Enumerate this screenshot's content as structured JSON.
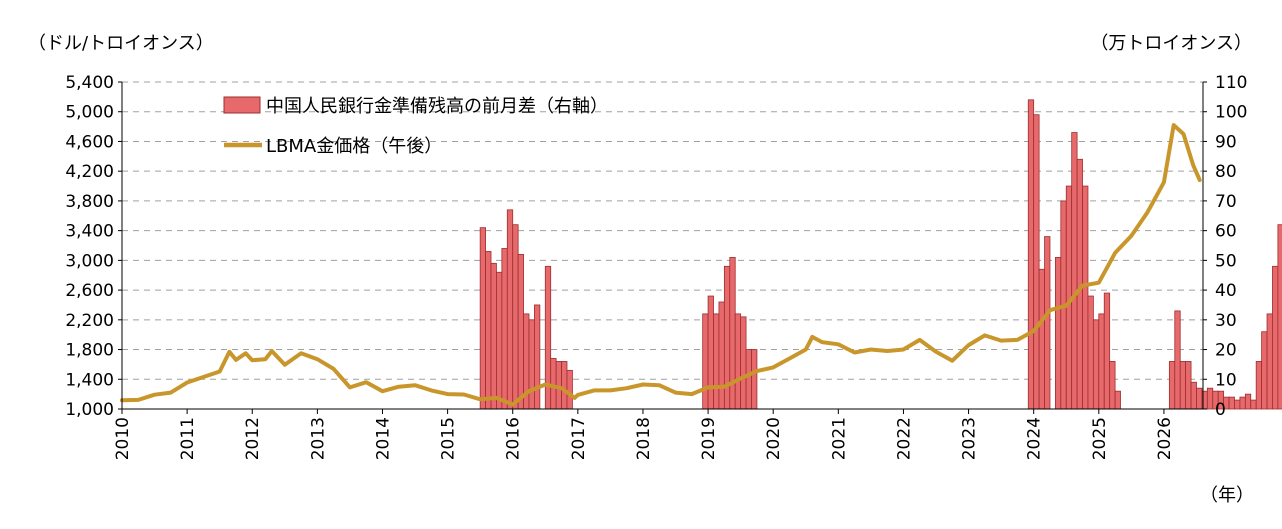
{
  "chart_data": {
    "type": "bar+line",
    "left_axis_label": "（ドル/トロイオンス）",
    "right_axis_label": "（万トロイオンス）",
    "x_axis_unit_label": "（年）",
    "left_ylim": [
      1000,
      5400
    ],
    "left_ticks": [
      "1,000",
      "1,400",
      "1,800",
      "2,200",
      "2,600",
      "3,000",
      "3,400",
      "3,800",
      "4,200",
      "4,600",
      "5,000",
      "5,400"
    ],
    "right_ylim": [
      0,
      110
    ],
    "right_ticks": [
      "0",
      "10",
      "20",
      "30",
      "40",
      "50",
      "60",
      "70",
      "80",
      "90",
      "100",
      "110"
    ],
    "x_ticks": [
      "2010",
      "2011",
      "2012",
      "2013",
      "2014",
      "2015",
      "2016",
      "2017",
      "2018",
      "2019",
      "2020",
      "2021",
      "2022",
      "2023",
      "2024",
      "2025",
      "2026"
    ],
    "grid": "horizontal dashed",
    "legend_position": "top-left",
    "bar_series": {
      "name": "中国人民銀行金準備残高の前月差（右軸）",
      "color": "#e8696b",
      "start_year": 2010,
      "values": [
        0,
        0,
        0,
        0,
        0,
        0,
        0,
        0,
        0,
        0,
        0,
        0,
        0,
        0,
        0,
        0,
        0,
        0,
        0,
        0,
        0,
        0,
        0,
        0,
        0,
        0,
        0,
        0,
        0,
        0,
        0,
        0,
        0,
        0,
        0,
        0,
        0,
        0,
        0,
        0,
        0,
        0,
        0,
        0,
        0,
        0,
        0,
        0,
        0,
        0,
        0,
        0,
        0,
        0,
        0,
        0,
        0,
        0,
        0,
        0,
        0,
        0,
        0,
        0,
        0,
        0,
        61,
        53,
        49,
        46,
        54,
        67,
        62,
        52,
        32,
        30,
        35,
        0,
        48,
        17,
        16,
        16,
        13,
        0,
        0,
        0,
        0,
        0,
        0,
        0,
        0,
        0,
        0,
        0,
        0,
        0,
        0,
        0,
        0,
        0,
        0,
        0,
        0,
        0,
        0,
        0,
        0,
        32,
        38,
        32,
        36,
        48,
        51,
        32,
        31,
        20,
        20,
        0,
        0,
        0,
        0,
        0,
        0,
        0,
        0,
        0,
        0,
        0,
        0,
        0,
        0,
        0,
        0,
        0,
        0,
        0,
        0,
        0,
        0,
        0,
        0,
        0,
        0,
        0,
        0,
        0,
        0,
        0,
        0,
        0,
        0,
        0,
        0,
        0,
        0,
        0,
        0,
        0,
        0,
        0,
        0,
        0,
        0,
        0,
        0,
        0,
        0,
        104,
        99,
        47,
        58,
        0,
        51,
        70,
        75,
        93,
        84,
        75,
        38,
        30,
        32,
        39,
        16,
        6,
        0,
        0,
        0,
        0,
        0,
        0,
        0,
        0,
        0,
        16,
        33,
        16,
        16,
        9,
        7,
        6,
        7,
        6,
        6,
        4,
        4,
        3,
        4,
        5,
        3,
        16,
        26,
        32,
        48,
        62
      ]
    },
    "line_series": {
      "name": "LBMA金価格（午後）",
      "color": "#c9962c",
      "values": [
        [
          2010.0,
          1118
        ],
        [
          2010.25,
          1122
        ],
        [
          2010.5,
          1193
        ],
        [
          2010.75,
          1221
        ],
        [
          2011.0,
          1356
        ],
        [
          2011.25,
          1430
        ],
        [
          2011.5,
          1505
        ],
        [
          2011.65,
          1770
        ],
        [
          2011.75,
          1660
        ],
        [
          2011.9,
          1749
        ],
        [
          2012.0,
          1656
        ],
        [
          2012.2,
          1670
        ],
        [
          2012.3,
          1780
        ],
        [
          2012.5,
          1595
        ],
        [
          2012.75,
          1750
        ],
        [
          2013.0,
          1670
        ],
        [
          2013.25,
          1540
        ],
        [
          2013.5,
          1290
        ],
        [
          2013.75,
          1360
        ],
        [
          2014.0,
          1240
        ],
        [
          2014.25,
          1300
        ],
        [
          2014.5,
          1320
        ],
        [
          2014.75,
          1250
        ],
        [
          2015.0,
          1200
        ],
        [
          2015.25,
          1195
        ],
        [
          2015.5,
          1130
        ],
        [
          2015.75,
          1150
        ],
        [
          2016.0,
          1060
        ],
        [
          2016.25,
          1240
        ],
        [
          2016.5,
          1330
        ],
        [
          2016.75,
          1280
        ],
        [
          2016.95,
          1150
        ],
        [
          2017.0,
          1190
        ],
        [
          2017.25,
          1250
        ],
        [
          2017.5,
          1250
        ],
        [
          2017.75,
          1280
        ],
        [
          2018.0,
          1330
        ],
        [
          2018.25,
          1320
        ],
        [
          2018.5,
          1220
        ],
        [
          2018.75,
          1200
        ],
        [
          2019.0,
          1290
        ],
        [
          2019.25,
          1300
        ],
        [
          2019.5,
          1410
        ],
        [
          2019.75,
          1510
        ],
        [
          2020.0,
          1560
        ],
        [
          2020.25,
          1680
        ],
        [
          2020.5,
          1800
        ],
        [
          2020.6,
          1970
        ],
        [
          2020.75,
          1900
        ],
        [
          2021.0,
          1870
        ],
        [
          2021.25,
          1760
        ],
        [
          2021.5,
          1800
        ],
        [
          2021.75,
          1780
        ],
        [
          2022.0,
          1800
        ],
        [
          2022.25,
          1930
        ],
        [
          2022.5,
          1770
        ],
        [
          2022.75,
          1650
        ],
        [
          2023.0,
          1860
        ],
        [
          2023.25,
          1990
        ],
        [
          2023.5,
          1920
        ],
        [
          2023.75,
          1930
        ],
        [
          2024.0,
          2050
        ],
        [
          2024.25,
          2330
        ],
        [
          2024.5,
          2390
        ],
        [
          2024.75,
          2660
        ],
        [
          2025.0,
          2700
        ],
        [
          2025.25,
          3100
        ],
        [
          2025.5,
          3330
        ],
        [
          2025.75,
          3650
        ],
        [
          2026.0,
          4050
        ],
        [
          2026.15,
          4820
        ],
        [
          2026.3,
          4700
        ],
        [
          2026.45,
          4280
        ],
        [
          2026.55,
          4080
        ]
      ]
    }
  }
}
